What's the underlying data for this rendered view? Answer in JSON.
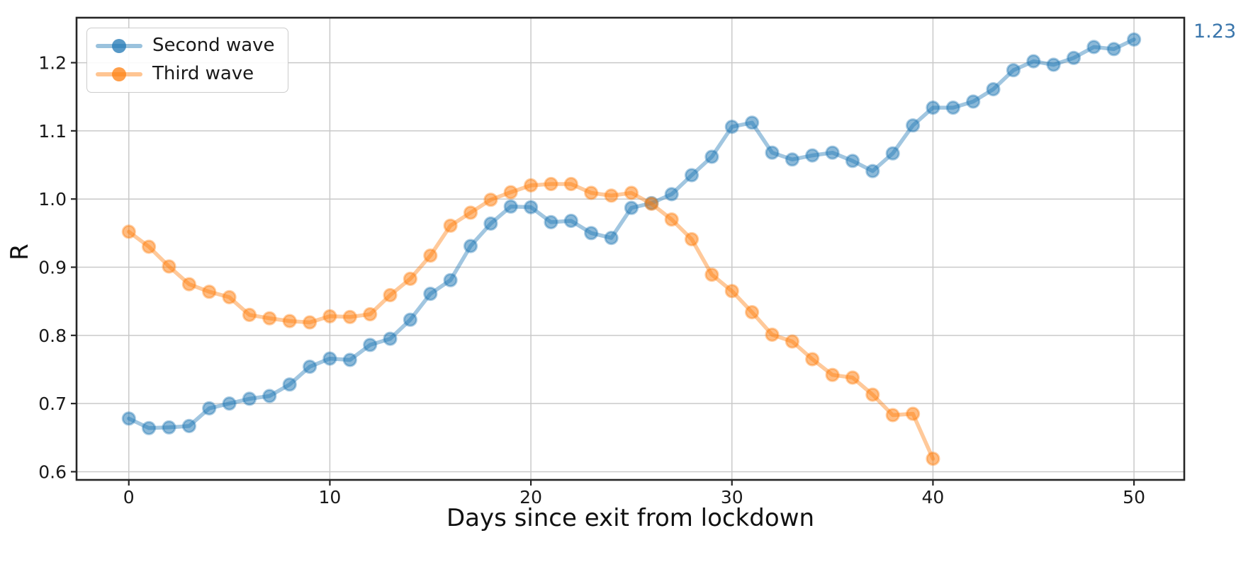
{
  "chart_data": {
    "type": "line",
    "title": "",
    "xlabel": "Days since exit from lockdown",
    "ylabel": "R",
    "xlim": [
      -2.6,
      52.5
    ],
    "ylim": [
      0.588,
      1.266
    ],
    "x_ticks": [
      0,
      10,
      20,
      30,
      40,
      50
    ],
    "y_ticks": [
      0.6,
      0.7,
      0.8,
      0.9,
      1.0,
      1.1,
      1.2
    ],
    "grid": true,
    "legend_position": "upper left",
    "series": [
      {
        "name": "Second wave",
        "color": "#1f77b4",
        "x": [
          0,
          1,
          2,
          3,
          4,
          5,
          6,
          7,
          8,
          9,
          10,
          11,
          12,
          13,
          14,
          15,
          16,
          17,
          18,
          19,
          20,
          21,
          22,
          23,
          24,
          25,
          26,
          27,
          28,
          29,
          30,
          31,
          32,
          33,
          34,
          35,
          36,
          37,
          38,
          39,
          40,
          41,
          42,
          43,
          44,
          45,
          46,
          47,
          48,
          49,
          50
        ],
        "values": [
          0.678,
          0.664,
          0.665,
          0.667,
          0.693,
          0.7,
          0.707,
          0.711,
          0.728,
          0.754,
          0.766,
          0.764,
          0.786,
          0.795,
          0.823,
          0.861,
          0.881,
          0.931,
          0.964,
          0.989,
          0.988,
          0.966,
          0.968,
          0.95,
          0.943,
          0.987,
          0.994,
          1.007,
          1.035,
          1.062,
          1.106,
          1.112,
          1.068,
          1.058,
          1.064,
          1.068,
          1.056,
          1.041,
          1.067,
          1.108,
          1.134,
          1.134,
          1.143,
          1.161,
          1.189,
          1.202,
          1.197,
          1.207,
          1.223,
          1.22,
          1.234
        ]
      },
      {
        "name": "Third wave",
        "color": "#ff7f0e",
        "x": [
          0,
          1,
          2,
          3,
          4,
          5,
          6,
          7,
          8,
          9,
          10,
          11,
          12,
          13,
          14,
          15,
          16,
          17,
          18,
          19,
          20,
          21,
          22,
          23,
          24,
          25,
          26,
          27,
          28,
          29,
          30,
          31,
          32,
          33,
          34,
          35,
          36,
          37,
          38,
          39,
          40
        ],
        "values": [
          0.952,
          0.93,
          0.901,
          0.875,
          0.864,
          0.856,
          0.83,
          0.825,
          0.821,
          0.819,
          0.828,
          0.827,
          0.831,
          0.859,
          0.883,
          0.917,
          0.961,
          0.98,
          0.999,
          1.01,
          1.02,
          1.022,
          1.022,
          1.009,
          1.005,
          1.009,
          0.993,
          0.97,
          0.941,
          0.889,
          0.865,
          0.834,
          0.801,
          0.791,
          0.765,
          0.742,
          0.738,
          0.713,
          0.683,
          0.685,
          0.619
        ]
      }
    ],
    "annotation": {
      "text": "1.23",
      "color": "#3A76AC"
    },
    "colors": {
      "grid": "#c9c9c9",
      "spine": "#262626",
      "tick_label": "#191919"
    }
  }
}
